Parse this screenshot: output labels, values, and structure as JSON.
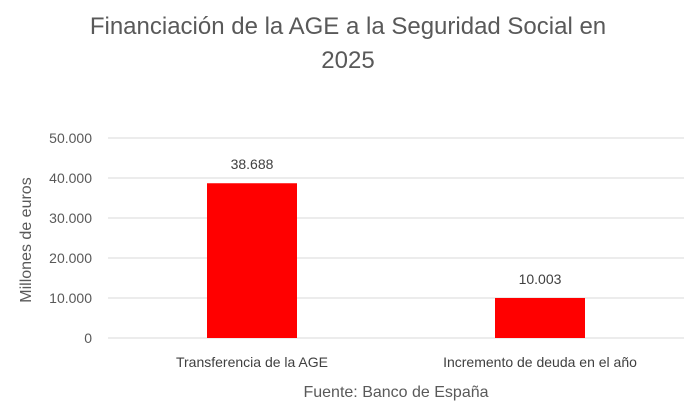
{
  "chart_data": {
    "type": "bar",
    "title_lines": [
      "Financiación de la AGE a la Seguridad Social en",
      "2025"
    ],
    "categories": [
      "Transferencia de la AGE",
      "Incremento de deuda en el año"
    ],
    "values": [
      38688,
      10003
    ],
    "data_labels": [
      "38.688",
      "10.003"
    ],
    "ylabel": "Millones de euros",
    "ylim": [
      0,
      50000
    ],
    "yticks": [
      0,
      10000,
      20000,
      30000,
      40000,
      50000
    ],
    "ytick_labels": [
      "0",
      "10.000",
      "20.000",
      "30.000",
      "40.000",
      "50.000"
    ],
    "grid": true,
    "bar_color": "#ff0000",
    "grid_color": "#d9d9d9",
    "source": "Fuente: Banco de España"
  }
}
